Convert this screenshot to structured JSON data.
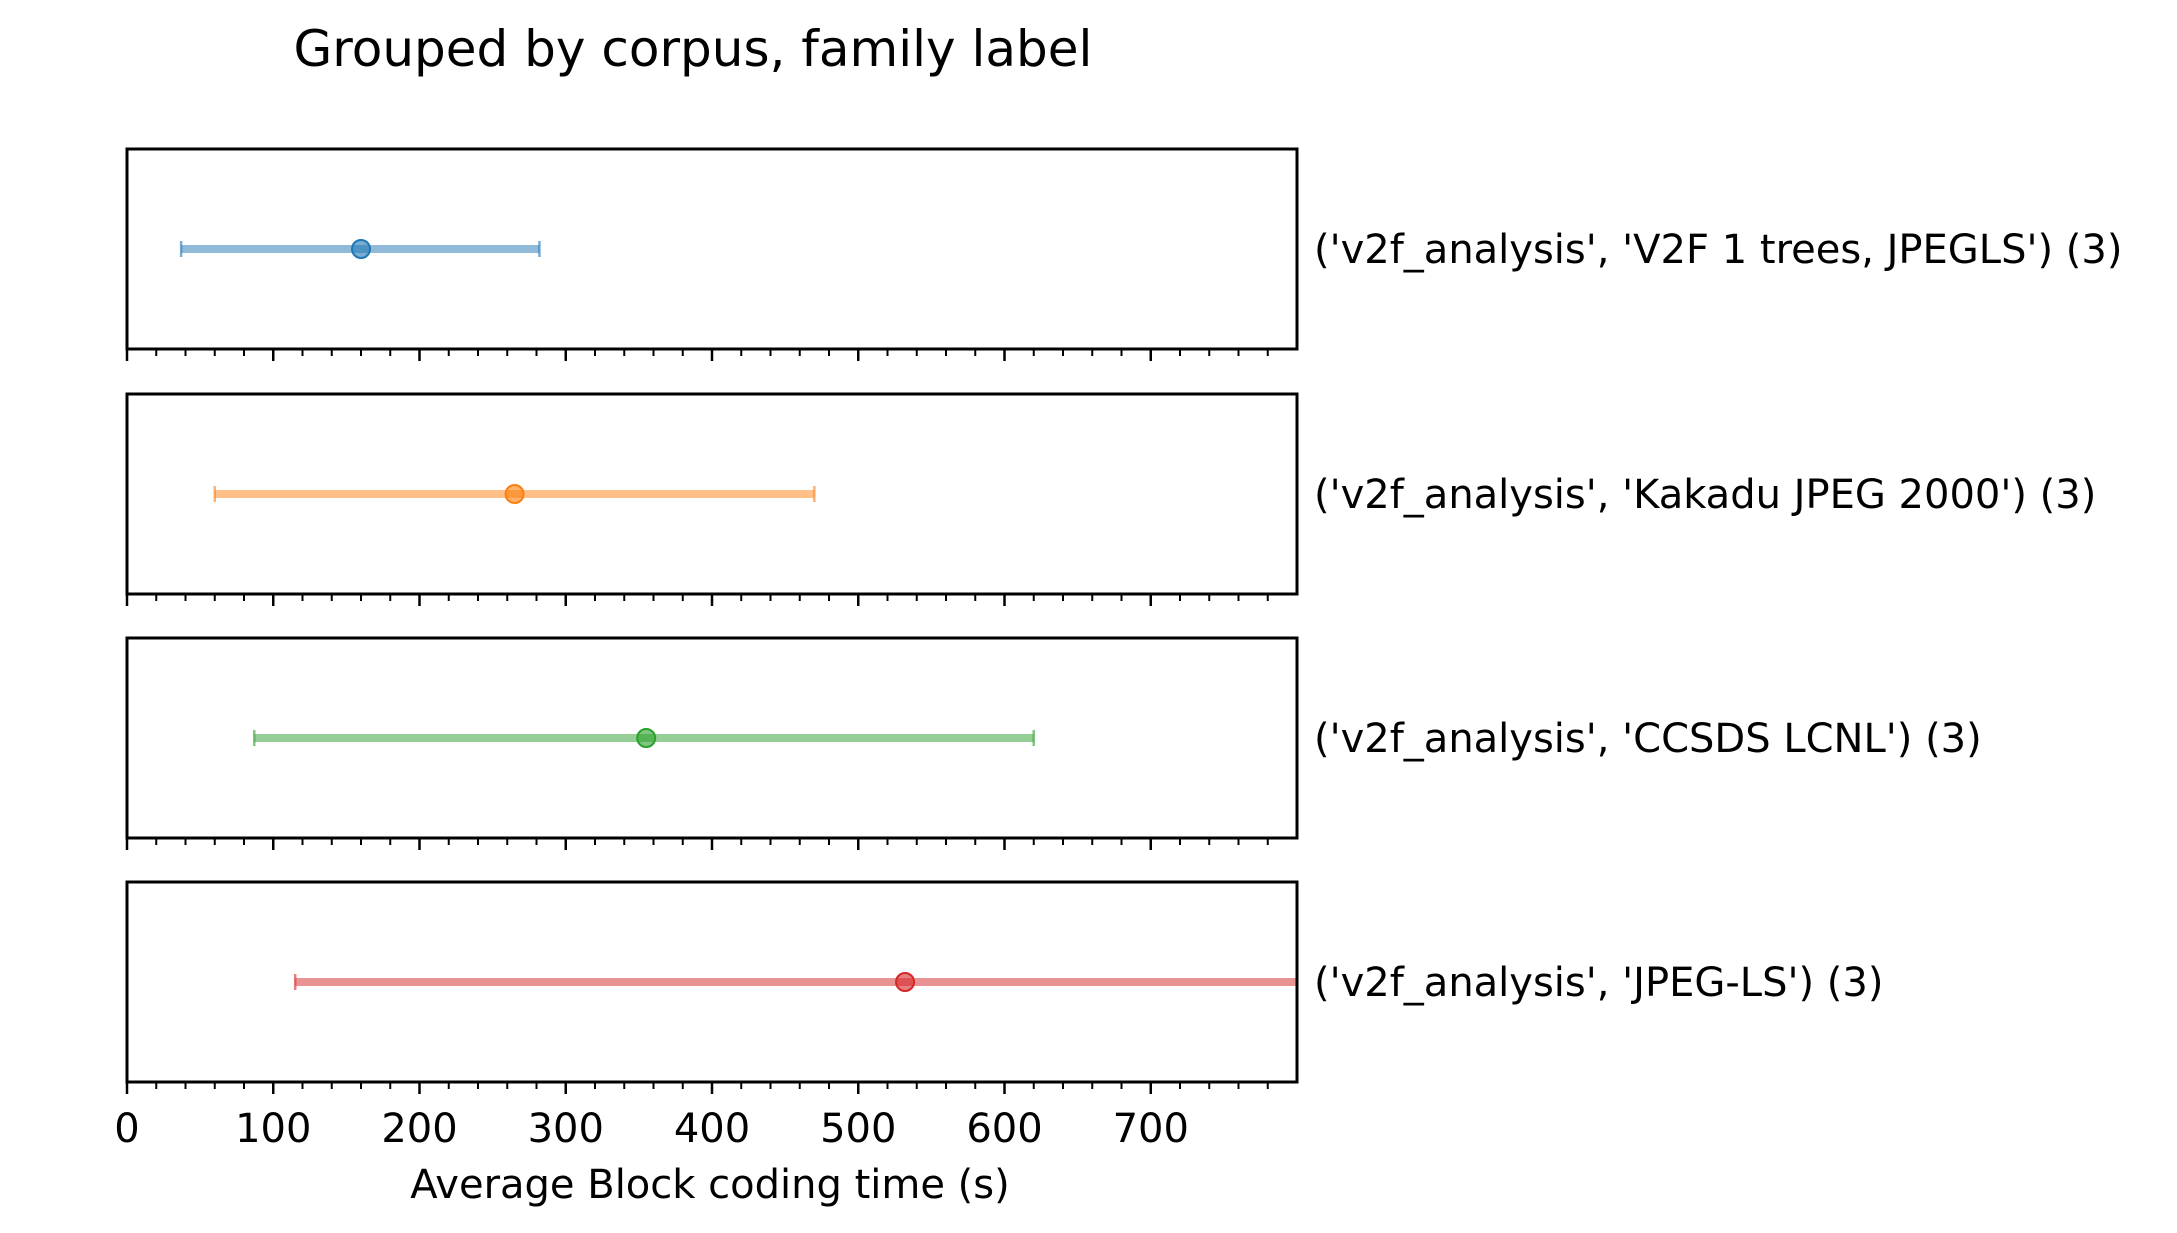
{
  "chart_data": {
    "type": "errorbar",
    "title": "Grouped by corpus, family label",
    "xlabel": "Average Block coding time (s)",
    "xlim": [
      0,
      800
    ],
    "x_ticks": [
      0,
      100,
      200,
      300,
      400,
      500,
      600,
      700
    ],
    "x_tick_labels": [
      "0",
      "100",
      "200",
      "300",
      "400",
      "500",
      "600",
      "700"
    ],
    "x_minor_tick_step": 20,
    "grid": false,
    "series": [
      {
        "name": "('v2f_analysis', 'V2F 1 trees, JPEGLS') (3)",
        "mean": 160,
        "low": 37,
        "high": 282,
        "color": "#1f77b4"
      },
      {
        "name": "('v2f_analysis', 'Kakadu JPEG 2000') (3)",
        "mean": 265,
        "low": 60,
        "high": 470,
        "color": "#ff7f0e"
      },
      {
        "name": "('v2f_analysis', 'CCSDS LCNL') (3)",
        "mean": 355,
        "low": 87,
        "high": 620,
        "color": "#2ca02c"
      },
      {
        "name": "('v2f_analysis', 'JPEG-LS') (3)",
        "mean": 532,
        "low": 115,
        "high": 800,
        "color": "#d62728"
      }
    ]
  }
}
